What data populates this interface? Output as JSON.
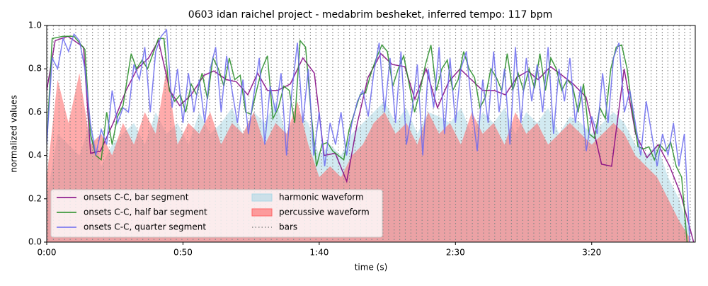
{
  "chart_data": {
    "type": "line",
    "title": "0603 idan raichel project - medabrim besheket, inferred tempo: 117 bpm",
    "xlabel": "time (s)",
    "ylabel": "normalized values",
    "xlim": [
      0,
      238
    ],
    "xticks": [
      {
        "value": 0,
        "label": "0:00"
      },
      {
        "value": 50,
        "label": "0:50"
      },
      {
        "value": 100,
        "label": "1:40"
      },
      {
        "value": 150,
        "label": "2:30"
      },
      {
        "value": 200,
        "label": "3:20"
      }
    ],
    "ylim": [
      0,
      1
    ],
    "yticks": [
      {
        "value": 0,
        "label": "0.0"
      },
      0.2,
      0.4,
      0.6,
      0.8,
      {
        "value": 1,
        "label": "1.0"
      }
    ],
    "legend": "lower left",
    "series": [
      {
        "name": "onsets C-C, bar segment",
        "kind": "line",
        "color": "#800080",
        "x": [
          0,
          3.1,
          7.8,
          13.5,
          16.1,
          19.7,
          24.4,
          29.1,
          33.2,
          37.4,
          41.0,
          45.2,
          48.8,
          53.0,
          57.7,
          61.3,
          66.0,
          69.6,
          73.8,
          77.4,
          81.0,
          84.7,
          89.4,
          94.0,
          98.2,
          101.8,
          105.9,
          110.1,
          114.0,
          117.9,
          122.6,
          126.8,
          131.4,
          135.1,
          139.2,
          143.4,
          147.5,
          151.7,
          155.8,
          160.0,
          164.2,
          168.3,
          172.5,
          176.6,
          180.3,
          184.9,
          189.1,
          193.2,
          197.9,
          203.6,
          207.3,
          211.9,
          216.1,
          220.3,
          224.4,
          228.6,
          232.7,
          237.4
        ],
        "values": [
          0.7,
          0.93,
          0.95,
          0.9,
          0.41,
          0.42,
          0.55,
          0.7,
          0.8,
          0.85,
          0.93,
          0.7,
          0.63,
          0.68,
          0.77,
          0.79,
          0.75,
          0.74,
          0.68,
          0.78,
          0.7,
          0.7,
          0.73,
          0.85,
          0.78,
          0.4,
          0.41,
          0.28,
          0.55,
          0.76,
          0.87,
          0.82,
          0.81,
          0.66,
          0.8,
          0.62,
          0.74,
          0.8,
          0.75,
          0.7,
          0.7,
          0.68,
          0.76,
          0.79,
          0.75,
          0.81,
          0.77,
          0.73,
          0.67,
          0.36,
          0.35,
          0.8,
          0.5,
          0.39,
          0.45,
          0.35,
          0.22,
          0.0
        ]
      },
      {
        "name": "onsets C-C, half bar segment",
        "kind": "line",
        "color": "#228b22",
        "x": [
          0,
          2,
          6,
          10,
          14,
          16,
          18,
          20,
          22,
          24,
          26,
          28,
          31,
          33,
          35,
          37,
          39,
          41,
          43,
          45,
          47,
          49,
          51,
          53,
          55,
          57,
          59,
          61,
          63,
          65,
          67,
          69,
          71,
          73,
          75,
          77,
          79,
          81,
          83,
          85,
          87,
          89,
          91,
          93,
          95,
          97,
          99,
          101,
          103,
          105,
          107,
          109,
          111,
          113,
          115,
          117,
          119,
          121,
          123,
          125,
          127,
          129,
          131,
          133,
          135,
          137,
          139,
          141,
          143,
          145,
          147,
          149,
          151,
          153,
          155,
          157,
          159,
          161,
          163,
          165,
          167,
          169,
          171,
          173,
          175,
          177,
          179,
          181,
          183,
          185,
          187,
          189,
          191,
          193,
          195,
          197,
          199,
          201,
          203,
          205,
          207,
          209,
          211,
          213,
          215,
          217,
          219,
          221,
          223,
          225,
          227,
          229,
          231,
          233,
          235
        ],
        "values": [
          0.45,
          0.94,
          0.95,
          0.95,
          0.89,
          0.5,
          0.4,
          0.38,
          0.6,
          0.45,
          0.58,
          0.63,
          0.87,
          0.8,
          0.84,
          0.8,
          0.87,
          0.94,
          0.94,
          0.7,
          0.65,
          0.68,
          0.6,
          0.73,
          0.68,
          0.78,
          0.66,
          0.85,
          0.8,
          0.72,
          0.85,
          0.75,
          0.77,
          0.6,
          0.59,
          0.7,
          0.8,
          0.86,
          0.57,
          0.62,
          0.72,
          0.7,
          0.55,
          0.93,
          0.9,
          0.6,
          0.35,
          0.45,
          0.46,
          0.42,
          0.4,
          0.38,
          0.52,
          0.6,
          0.68,
          0.69,
          0.78,
          0.85,
          0.91,
          0.88,
          0.72,
          0.8,
          0.86,
          0.73,
          0.6,
          0.7,
          0.82,
          0.91,
          0.7,
          0.8,
          0.84,
          0.7,
          0.75,
          0.88,
          0.8,
          0.76,
          0.62,
          0.67,
          0.8,
          0.76,
          0.7,
          0.87,
          0.7,
          0.78,
          0.7,
          0.8,
          0.71,
          0.87,
          0.7,
          0.85,
          0.8,
          0.7,
          0.75,
          0.72,
          0.6,
          0.73,
          0.5,
          0.48,
          0.62,
          0.57,
          0.8,
          0.9,
          0.91,
          0.8,
          0.6,
          0.44,
          0.43,
          0.44,
          0.38,
          0.45,
          0.42,
          0.46,
          0.35,
          0.3,
          0.0
        ]
      },
      {
        "name": "onsets C-C, quarter segment",
        "kind": "line",
        "color": "#6a6af0",
        "x": [
          0,
          2,
          4,
          6,
          8,
          10,
          12,
          14,
          16,
          18,
          20,
          22,
          24,
          26,
          28,
          30,
          32,
          34,
          36,
          38,
          40,
          42,
          44,
          46,
          48,
          50,
          52,
          54,
          56,
          58,
          60,
          62,
          64,
          66,
          68,
          70,
          72,
          74,
          76,
          78,
          80,
          82,
          84,
          86,
          88,
          90,
          92,
          94,
          96,
          98,
          100,
          102,
          104,
          106,
          108,
          110,
          112,
          114,
          116,
          118,
          120,
          122,
          124,
          126,
          128,
          130,
          132,
          134,
          136,
          138,
          140,
          142,
          144,
          146,
          148,
          150,
          152,
          154,
          156,
          158,
          160,
          162,
          164,
          166,
          168,
          170,
          172,
          174,
          176,
          178,
          180,
          182,
          184,
          186,
          188,
          190,
          192,
          194,
          196,
          198,
          200,
          202,
          204,
          206,
          208,
          210,
          212,
          214,
          216,
          218,
          220,
          222,
          224,
          226,
          228,
          230,
          232,
          234,
          236
        ],
        "values": [
          0.45,
          0.85,
          0.8,
          0.94,
          0.88,
          0.96,
          0.93,
          0.8,
          0.55,
          0.4,
          0.52,
          0.45,
          0.7,
          0.55,
          0.62,
          0.6,
          0.82,
          0.75,
          0.9,
          0.6,
          0.88,
          0.95,
          0.98,
          0.62,
          0.8,
          0.55,
          0.78,
          0.6,
          0.75,
          0.55,
          0.8,
          0.9,
          0.6,
          0.86,
          0.7,
          0.55,
          0.75,
          0.5,
          0.68,
          0.85,
          0.45,
          0.72,
          0.6,
          0.78,
          0.4,
          0.7,
          0.92,
          0.55,
          0.8,
          0.4,
          0.6,
          0.35,
          0.55,
          0.45,
          0.6,
          0.4,
          0.55,
          0.65,
          0.7,
          0.58,
          0.78,
          0.92,
          0.6,
          0.85,
          0.55,
          0.88,
          0.45,
          0.6,
          0.82,
          0.4,
          0.8,
          0.62,
          0.9,
          0.5,
          0.85,
          0.55,
          0.8,
          0.88,
          0.62,
          0.42,
          0.75,
          0.55,
          0.88,
          0.6,
          0.8,
          0.45,
          0.9,
          0.55,
          0.85,
          0.65,
          0.82,
          0.6,
          0.9,
          0.5,
          0.8,
          0.65,
          0.85,
          0.55,
          0.72,
          0.42,
          0.58,
          0.5,
          0.78,
          0.55,
          0.85,
          0.92,
          0.6,
          0.7,
          0.55,
          0.4,
          0.65,
          0.5,
          0.35,
          0.5,
          0.4,
          0.55,
          0.35,
          0.5,
          0.0
        ]
      },
      {
        "name": "harmonic waveform",
        "kind": "area",
        "color": "#add8e6",
        "x": [
          0,
          4,
          8,
          12,
          16,
          20,
          24,
          28,
          32,
          36,
          40,
          44,
          48,
          52,
          56,
          60,
          64,
          68,
          72,
          76,
          80,
          84,
          88,
          92,
          96,
          100,
          104,
          108,
          112,
          116,
          120,
          124,
          128,
          132,
          136,
          140,
          144,
          148,
          152,
          156,
          160,
          164,
          168,
          172,
          176,
          180,
          184,
          188,
          192,
          196,
          200,
          204,
          208,
          212,
          216,
          220,
          224,
          228,
          232,
          236
        ],
        "values": [
          0.2,
          0.5,
          0.45,
          0.4,
          0.55,
          0.35,
          0.45,
          0.5,
          0.55,
          0.45,
          0.6,
          0.5,
          0.55,
          0.45,
          0.6,
          0.5,
          0.55,
          0.62,
          0.5,
          0.6,
          0.55,
          0.65,
          0.5,
          0.6,
          0.55,
          0.4,
          0.45,
          0.4,
          0.5,
          0.55,
          0.6,
          0.65,
          0.55,
          0.62,
          0.5,
          0.6,
          0.58,
          0.55,
          0.62,
          0.5,
          0.6,
          0.55,
          0.62,
          0.5,
          0.6,
          0.55,
          0.62,
          0.5,
          0.58,
          0.55,
          0.5,
          0.55,
          0.6,
          0.55,
          0.45,
          0.4,
          0.45,
          0.3,
          0.2,
          0.05
        ]
      },
      {
        "name": "percussive waveform",
        "kind": "area",
        "color": "#ff6666",
        "x": [
          0,
          4,
          8,
          12,
          16,
          20,
          24,
          28,
          32,
          36,
          40,
          44,
          48,
          52,
          56,
          60,
          64,
          68,
          72,
          76,
          80,
          84,
          88,
          92,
          96,
          100,
          104,
          108,
          112,
          116,
          120,
          124,
          128,
          132,
          136,
          140,
          144,
          148,
          152,
          156,
          160,
          164,
          168,
          172,
          176,
          180,
          184,
          188,
          192,
          196,
          200,
          204,
          208,
          212,
          216,
          220,
          224,
          228,
          232,
          236
        ],
        "values": [
          0.3,
          0.75,
          0.55,
          0.78,
          0.45,
          0.5,
          0.4,
          0.55,
          0.45,
          0.6,
          0.5,
          0.8,
          0.45,
          0.55,
          0.5,
          0.6,
          0.45,
          0.55,
          0.5,
          0.6,
          0.45,
          0.55,
          0.5,
          0.65,
          0.45,
          0.3,
          0.35,
          0.3,
          0.4,
          0.45,
          0.55,
          0.6,
          0.5,
          0.55,
          0.45,
          0.6,
          0.5,
          0.55,
          0.45,
          0.6,
          0.5,
          0.55,
          0.45,
          0.6,
          0.5,
          0.55,
          0.45,
          0.5,
          0.55,
          0.5,
          0.45,
          0.5,
          0.55,
          0.5,
          0.4,
          0.35,
          0.3,
          0.2,
          0.1,
          0.02
        ]
      },
      {
        "name": "bars",
        "kind": "vlines",
        "color": "#888888",
        "x": [
          0.4,
          2.45,
          4.5,
          6.55,
          8.6,
          10.65,
          12.7,
          14.75,
          16.8,
          18.85,
          20.9,
          22.95,
          25.0,
          27.05,
          29.1,
          31.15,
          33.2,
          35.25,
          37.3,
          39.35,
          41.4,
          43.45,
          45.5,
          47.55,
          49.6,
          51.65,
          53.7,
          55.75,
          57.8,
          59.85,
          61.9,
          63.95,
          66.0,
          68.05,
          70.1,
          72.15,
          74.2,
          76.25,
          78.3,
          80.35,
          82.4,
          84.45,
          86.5,
          88.55,
          90.6,
          92.65,
          94.7,
          96.75,
          98.8,
          100.85,
          102.9,
          104.95,
          107.0,
          109.05,
          111.1,
          113.15,
          115.2,
          117.25,
          119.3,
          121.35,
          123.4,
          125.45,
          127.5,
          129.55,
          131.6,
          133.65,
          135.7,
          137.75,
          139.8,
          141.85,
          143.9,
          145.95,
          148.0,
          150.05,
          152.1,
          154.15,
          156.2,
          158.25,
          160.3,
          162.35,
          164.4,
          166.45,
          168.5,
          170.55,
          172.6,
          174.65,
          176.7,
          178.75,
          180.8,
          182.85,
          184.9,
          186.95,
          189.0,
          191.05,
          193.1,
          195.15,
          197.2,
          199.25,
          201.3,
          203.35,
          205.4,
          207.45,
          209.5,
          211.55,
          213.6,
          215.65,
          217.7,
          219.75,
          221.8,
          223.85,
          225.9,
          227.95,
          230.0,
          232.05,
          234.1,
          236.15
        ]
      }
    ]
  }
}
